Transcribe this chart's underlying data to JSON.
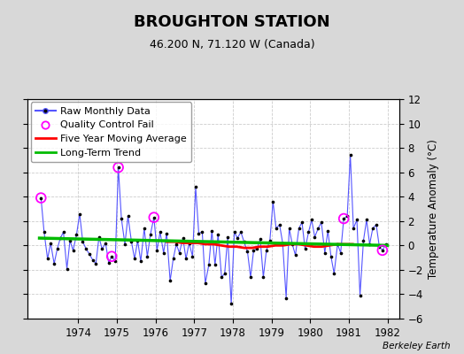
{
  "title": "BROUGHTON STATION",
  "subtitle": "46.200 N, 71.120 W (Canada)",
  "ylabel": "Temperature Anomaly (°C)",
  "credit": "Berkeley Earth",
  "xlim": [
    1972.7,
    1982.3
  ],
  "ylim": [
    -6,
    12
  ],
  "yticks": [
    -6,
    -4,
    -2,
    0,
    2,
    4,
    6,
    8,
    10,
    12
  ],
  "xticks": [
    1974,
    1975,
    1976,
    1977,
    1978,
    1979,
    1980,
    1981,
    1982
  ],
  "background_color": "#d8d8d8",
  "plot_bg_color": "#ffffff",
  "raw_x": [
    1973.04,
    1973.12,
    1973.21,
    1973.29,
    1973.38,
    1973.46,
    1973.54,
    1973.62,
    1973.71,
    1973.79,
    1973.87,
    1973.96,
    1974.04,
    1974.12,
    1974.21,
    1974.29,
    1974.38,
    1974.46,
    1974.54,
    1974.62,
    1974.71,
    1974.79,
    1974.87,
    1974.96,
    1975.04,
    1975.12,
    1975.21,
    1975.29,
    1975.38,
    1975.46,
    1975.54,
    1975.62,
    1975.71,
    1975.79,
    1975.87,
    1975.96,
    1976.04,
    1976.12,
    1976.21,
    1976.29,
    1976.38,
    1976.46,
    1976.54,
    1976.62,
    1976.71,
    1976.79,
    1976.87,
    1976.96,
    1977.04,
    1977.12,
    1977.21,
    1977.29,
    1977.38,
    1977.46,
    1977.54,
    1977.62,
    1977.71,
    1977.79,
    1977.87,
    1977.96,
    1978.04,
    1978.12,
    1978.21,
    1978.29,
    1978.38,
    1978.46,
    1978.54,
    1978.62,
    1978.71,
    1978.79,
    1978.87,
    1978.96,
    1979.04,
    1979.12,
    1979.21,
    1979.29,
    1979.38,
    1979.46,
    1979.54,
    1979.62,
    1979.71,
    1979.79,
    1979.87,
    1979.96,
    1980.04,
    1980.12,
    1980.21,
    1980.29,
    1980.38,
    1980.46,
    1980.54,
    1980.62,
    1980.71,
    1980.79,
    1980.87,
    1980.96,
    1981.04,
    1981.12,
    1981.21,
    1981.29,
    1981.38,
    1981.46,
    1981.54,
    1981.62,
    1981.71,
    1981.79,
    1981.87,
    1981.96
  ],
  "raw_y": [
    3.9,
    1.1,
    -1.1,
    0.2,
    -1.5,
    -0.3,
    0.6,
    1.1,
    -1.9,
    0.4,
    -0.4,
    0.9,
    2.6,
    0.3,
    -0.3,
    -0.7,
    -1.2,
    -1.5,
    0.7,
    -0.3,
    0.2,
    -1.4,
    -0.9,
    -1.3,
    6.4,
    2.2,
    0.1,
    2.4,
    0.3,
    -1.1,
    0.4,
    -1.3,
    1.4,
    -0.9,
    0.9,
    2.3,
    -0.4,
    1.1,
    -0.6,
    1.0,
    -2.9,
    -1.1,
    0.1,
    -0.6,
    0.6,
    -1.1,
    0.2,
    -0.9,
    4.8,
    1.0,
    1.1,
    -3.1,
    -1.6,
    1.2,
    -1.6,
    0.9,
    -2.6,
    -2.3,
    0.7,
    -4.8,
    1.1,
    0.6,
    1.1,
    0.3,
    -0.5,
    -2.6,
    -0.4,
    -0.3,
    0.5,
    -2.6,
    -0.4,
    0.4,
    3.6,
    1.4,
    1.7,
    0.2,
    -4.3,
    1.4,
    0.1,
    -0.8,
    1.4,
    1.9,
    -0.3,
    1.1,
    2.1,
    0.7,
    1.4,
    1.9,
    -0.6,
    1.2,
    -0.9,
    -2.3,
    0.1,
    -0.6,
    2.2,
    2.4,
    7.4,
    1.4,
    2.1,
    -4.1,
    0.4,
    2.1,
    0.1,
    1.4,
    1.7,
    -0.1,
    -0.4,
    0.1
  ],
  "qc_fail_x": [
    1973.04,
    1974.87,
    1975.04,
    1975.96,
    1980.87,
    1981.87
  ],
  "qc_fail_y": [
    3.9,
    -0.9,
    6.4,
    2.3,
    2.2,
    -0.4
  ],
  "moving_avg_x": [
    1976.3,
    1976.5,
    1976.7,
    1976.9,
    1977.1,
    1977.3,
    1977.5,
    1977.7,
    1977.9,
    1978.1,
    1978.3,
    1978.5,
    1978.7,
    1978.9,
    1979.1,
    1979.3,
    1979.5,
    1979.7,
    1979.9,
    1980.1,
    1980.3,
    1980.5,
    1980.7,
    1980.9,
    1981.1
  ],
  "moving_avg_y": [
    0.3,
    0.3,
    0.2,
    0.2,
    0.2,
    0.1,
    0.1,
    0.0,
    -0.1,
    -0.1,
    -0.2,
    -0.2,
    -0.1,
    -0.1,
    0.0,
    0.0,
    0.1,
    0.1,
    0.0,
    -0.1,
    -0.1,
    0.0,
    0.1,
    0.1,
    0.1
  ],
  "trend_x": [
    1973.0,
    1982.0
  ],
  "trend_y": [
    0.6,
    0.0
  ],
  "line_color": "#5555ff",
  "dot_color": "#000000",
  "qc_color": "#ff00ff",
  "moving_avg_color": "#ff0000",
  "trend_color": "#00bb00",
  "grid_color": "#cccccc",
  "tick_fontsize": 8.5,
  "legend_fontsize": 8,
  "title_fontsize": 13,
  "subtitle_fontsize": 9
}
